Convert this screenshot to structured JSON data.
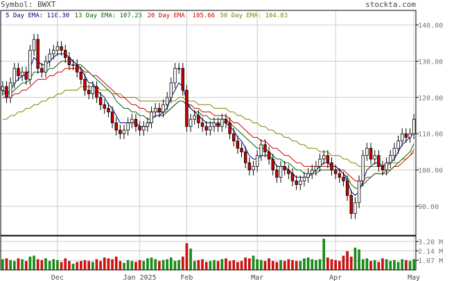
{
  "header": {
    "symbol": "Symbol: BWXT",
    "brand": "stockta.com"
  },
  "legend": [
    {
      "label": "5 Day EMA: 110.30",
      "color": "#000080"
    },
    {
      "label": "13 Day EMA: 107.25",
      "color": "#006400"
    },
    {
      "label": "20 Day EMA: 105.66",
      "color": "#cc0000"
    },
    {
      "label": "50 Day EMA: 104.83",
      "color": "#808000"
    }
  ],
  "colors": {
    "up": "#ffffff",
    "down": "#cc0000",
    "vol_up": "#1a8a1a",
    "vol_down": "#cc1111",
    "grid": "#cccccc"
  },
  "chart_data": {
    "type": "candlestick",
    "price_axis": {
      "ticks": [
        140,
        130,
        120,
        110,
        100,
        90
      ],
      "tick_labels": [
        "140.00",
        "130.00",
        "120.00",
        "110.00",
        "100.00",
        "90.00"
      ],
      "ylim": [
        82,
        144
      ]
    },
    "volume_axis": {
      "ticks": [
        3.2,
        2.14,
        1.07
      ],
      "tick_labels": [
        "3.20 M",
        "2.14 M",
        "1.07 M"
      ],
      "ylim": [
        0,
        3.5
      ]
    },
    "x_labels": [
      {
        "label": "Dec",
        "index": 14
      },
      {
        "label": "Jan 2025",
        "index": 35
      },
      {
        "label": "Feb",
        "index": 47
      },
      {
        "label": "Mar",
        "index": 65
      },
      {
        "label": "Apr",
        "index": 85
      },
      {
        "label": "May",
        "index": 105
      }
    ],
    "close": [
      123,
      120,
      124,
      128,
      126,
      127,
      125,
      133,
      136,
      128,
      127,
      130,
      132,
      133,
      134,
      133,
      131,
      129,
      129,
      127,
      125,
      122,
      121,
      123,
      120,
      118,
      117,
      116,
      113,
      111,
      110,
      111,
      113,
      114,
      112,
      111,
      112,
      113,
      116,
      117,
      116,
      118,
      120,
      124,
      128,
      128,
      122,
      112,
      114,
      115,
      113,
      112,
      111,
      112,
      113,
      112,
      114,
      113,
      110,
      108,
      106,
      105,
      102,
      100,
      101,
      104,
      107,
      105,
      103,
      100,
      98,
      101,
      100,
      99,
      97,
      96,
      97,
      98,
      99,
      100,
      101,
      103,
      104,
      102,
      100,
      99,
      98,
      97,
      93,
      88,
      91,
      97,
      104,
      106,
      103,
      104,
      101,
      100,
      102,
      104,
      106,
      108,
      110,
      109,
      110,
      114
    ],
    "volume": [
      1.2,
      1.3,
      1.1,
      1.0,
      1.3,
      1.2,
      1.0,
      1.5,
      1.6,
      1.2,
      1.1,
      1.3,
      1.0,
      1.2,
      1.1,
      0.9,
      1.3,
      1.0,
      0.7,
      0.9,
      1.0,
      1.1,
      1.0,
      0.9,
      1.2,
      1.0,
      1.4,
      1.3,
      1.2,
      1.5,
      1.0,
      0.8,
      1.1,
      1.0,
      0.9,
      1.1,
      1.0,
      1.3,
      1.4,
      1.2,
      1.0,
      1.1,
      1.2,
      1.4,
      1.0,
      1.1,
      1.5,
      3.0,
      2.4,
      1.0,
      1.1,
      1.2,
      0.9,
      1.0,
      1.1,
      1.0,
      1.2,
      1.3,
      1.0,
      1.1,
      0.9,
      1.0,
      1.4,
      1.3,
      1.6,
      1.2,
      1.1,
      1.0,
      1.3,
      1.0,
      0.9,
      1.1,
      1.0,
      1.2,
      1.1,
      1.0,
      1.0,
      1.3,
      1.4,
      1.2,
      1.1,
      1.2,
      3.5,
      1.4,
      1.2,
      1.1,
      1.0,
      1.6,
      2.1,
      1.5,
      2.5,
      2.3,
      1.2,
      1.3,
      1.0,
      1.1,
      0.9,
      1.3,
      1.2,
      1.0,
      1.1,
      0.9,
      1.2,
      1.1,
      1.0,
      1.2
    ],
    "ema5": [
      122,
      121,
      122,
      124,
      125,
      126,
      126,
      128,
      131,
      130,
      129,
      129,
      130,
      131,
      132,
      132,
      132,
      131,
      130,
      129,
      128,
      126,
      124,
      124,
      122,
      121,
      120,
      118,
      117,
      115,
      113,
      113,
      113,
      113,
      113,
      112,
      112,
      112,
      114,
      115,
      115,
      116,
      117,
      120,
      122,
      124,
      123,
      119,
      117,
      116,
      115,
      114,
      113,
      113,
      113,
      112,
      113,
      113,
      112,
      111,
      109,
      108,
      106,
      104,
      103,
      103,
      104,
      104,
      104,
      103,
      101,
      101,
      101,
      100,
      99,
      98,
      98,
      98,
      98,
      99,
      100,
      101,
      102,
      102,
      101,
      101,
      100,
      99,
      97,
      94,
      93,
      94,
      97,
      100,
      101,
      102,
      102,
      101,
      102,
      102,
      103,
      105,
      107,
      108,
      109,
      110.3
    ],
    "ema13": [
      121,
      121,
      121,
      122,
      123,
      124,
      124,
      125,
      127,
      127,
      127,
      127,
      128,
      128,
      129,
      130,
      130,
      130,
      130,
      129,
      129,
      128,
      127,
      126,
      125,
      124,
      123,
      122,
      121,
      119,
      118,
      117,
      117,
      116,
      116,
      115,
      115,
      114,
      114,
      115,
      115,
      115,
      116,
      117,
      118,
      119,
      119,
      118,
      117,
      116,
      116,
      115,
      115,
      114,
      114,
      114,
      114,
      114,
      113,
      112,
      111,
      110,
      109,
      108,
      107,
      106,
      106,
      106,
      105,
      104,
      103,
      103,
      102,
      102,
      101,
      100,
      100,
      99,
      99,
      99,
      99,
      100,
      100,
      100,
      100,
      100,
      100,
      99,
      98,
      96,
      95,
      95,
      96,
      97,
      98,
      99,
      99,
      99,
      99,
      100,
      101,
      102,
      103,
      104,
      105,
      107.25
    ],
    "ema20": [
      120,
      120,
      120,
      121,
      121,
      122,
      122,
      123,
      124,
      125,
      125,
      125,
      126,
      126,
      127,
      127,
      128,
      128,
      128,
      128,
      128,
      127,
      127,
      126,
      126,
      125,
      124,
      123,
      122,
      121,
      120,
      120,
      119,
      118,
      118,
      117,
      117,
      116,
      116,
      116,
      116,
      116,
      116,
      117,
      118,
      119,
      119,
      118,
      118,
      117,
      117,
      116,
      116,
      116,
      115,
      115,
      115,
      115,
      114,
      113,
      113,
      112,
      111,
      110,
      109,
      109,
      108,
      108,
      107,
      106,
      106,
      105,
      104,
      104,
      103,
      102,
      102,
      101,
      101,
      101,
      101,
      101,
      101,
      101,
      101,
      101,
      100,
      100,
      99,
      98,
      97,
      97,
      97,
      98,
      98,
      99,
      99,
      99,
      100,
      100,
      101,
      101,
      102,
      103,
      104,
      105.66
    ],
    "ema50": [
      114,
      114,
      115,
      115,
      116,
      116,
      117,
      117,
      118,
      118,
      119,
      119,
      120,
      120,
      121,
      121,
      122,
      122,
      122,
      122,
      123,
      123,
      123,
      123,
      123,
      122,
      122,
      122,
      121,
      121,
      121,
      120,
      120,
      120,
      120,
      119,
      119,
      119,
      119,
      119,
      119,
      119,
      119,
      119,
      119,
      120,
      120,
      119,
      119,
      119,
      118,
      118,
      118,
      118,
      117,
      117,
      117,
      117,
      116,
      116,
      115,
      115,
      114,
      114,
      113,
      113,
      112,
      112,
      111,
      111,
      110,
      110,
      109,
      109,
      108,
      108,
      107,
      107,
      106,
      106,
      106,
      105,
      105,
      105,
      104,
      104,
      104,
      103,
      103,
      102,
      102,
      101,
      101,
      101,
      101,
      101,
      101,
      101,
      101,
      102,
      102,
      102,
      103,
      103,
      104,
      104.83
    ]
  }
}
